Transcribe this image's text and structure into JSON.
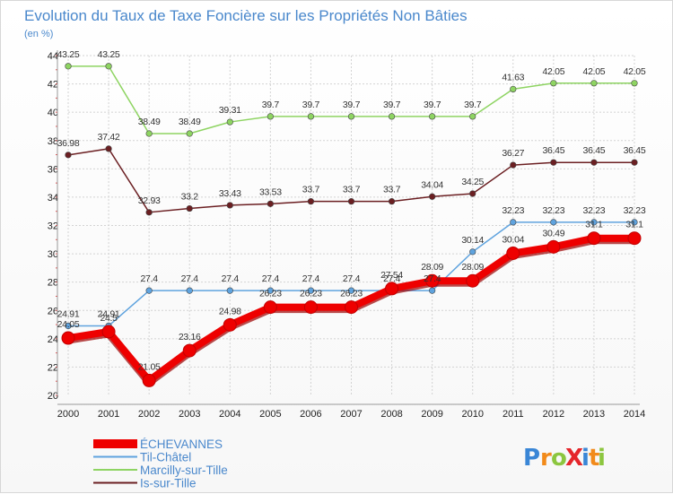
{
  "chart_data": {
    "type": "line",
    "title": "Evolution du Taux de Taxe Foncière sur les Propriétés Non Bâties",
    "unit_label": "(en %)",
    "xlabel": "",
    "ylabel": "",
    "x": [
      "2000",
      "2001",
      "2002",
      "2003",
      "2004",
      "2005",
      "2006",
      "2007",
      "2008",
      "2009",
      "2010",
      "2011",
      "2012",
      "2013",
      "2014"
    ],
    "ylim": [
      20,
      44
    ],
    "yticks": [
      "20",
      "22",
      "24",
      "26",
      "28",
      "30",
      "32",
      "34",
      "36",
      "38",
      "40",
      "42",
      "44"
    ],
    "grid": true,
    "legend_position": "bottom-left",
    "series": [
      {
        "name": "ÉCHEVANNES",
        "color": "#ee0000",
        "values": [
          24.05,
          24.5,
          21.05,
          23.16,
          24.98,
          26.23,
          26.23,
          26.23,
          27.54,
          28.09,
          28.09,
          30.04,
          30.49,
          31.1,
          31.1
        ],
        "labels": [
          "24.05",
          "24.5",
          "21.05",
          "23.16",
          "24.98",
          "26.23",
          "26.23",
          "26.23",
          "27.54",
          "28.09",
          "28.09",
          "30.04",
          "30.49",
          "31.1",
          "31.1"
        ]
      },
      {
        "name": "Til-Châtel",
        "color": "#5fa3de",
        "values": [
          24.91,
          24.91,
          27.4,
          27.4,
          27.4,
          27.4,
          27.4,
          27.4,
          27.4,
          27.4,
          30.14,
          32.23,
          32.23,
          32.23,
          32.23
        ],
        "labels": [
          "24.91",
          "24.91",
          "27.4",
          "27.4",
          "27.4",
          "27.4",
          "27.4",
          "27.4",
          "27.4",
          "27.4",
          "30.14",
          "32.23",
          "32.23",
          "32.23",
          "32.23"
        ]
      },
      {
        "name": "Marcilly-sur-Tille",
        "color": "#8ed462",
        "values": [
          43.25,
          43.25,
          38.49,
          38.49,
          39.31,
          39.7,
          39.7,
          39.7,
          39.7,
          39.7,
          39.7,
          41.63,
          42.05,
          42.05,
          42.05
        ],
        "labels": [
          "43.25",
          "43.25",
          "38.49",
          "38.49",
          "39.31",
          "39.7",
          "39.7",
          "39.7",
          "39.7",
          "39.7",
          "39.7",
          "41.63",
          "42.05",
          "42.05",
          "42.05"
        ]
      },
      {
        "name": "Is-sur-Tille",
        "color": "#6b1f22",
        "values": [
          36.98,
          37.42,
          32.93,
          33.2,
          33.43,
          33.53,
          33.7,
          33.7,
          33.7,
          34.04,
          34.25,
          36.27,
          36.45,
          36.45,
          36.45
        ],
        "labels": [
          "36.98",
          "37.42",
          "32.93",
          "33.2",
          "33.43",
          "33.53",
          "33.7",
          "33.7",
          "33.7",
          "34.04",
          "34.25",
          "36.27",
          "36.45",
          "36.45",
          "36.45"
        ]
      }
    ]
  },
  "brand": {
    "text": "ProXiti",
    "letters": [
      "P",
      "r",
      "o",
      "X",
      "i",
      "t",
      "i"
    ],
    "colors": [
      "#3a86d6",
      "#f28a1a",
      "#8cc63f",
      "#e5262b",
      "#3a86d6",
      "#f28a1a",
      "#8cc63f"
    ]
  }
}
